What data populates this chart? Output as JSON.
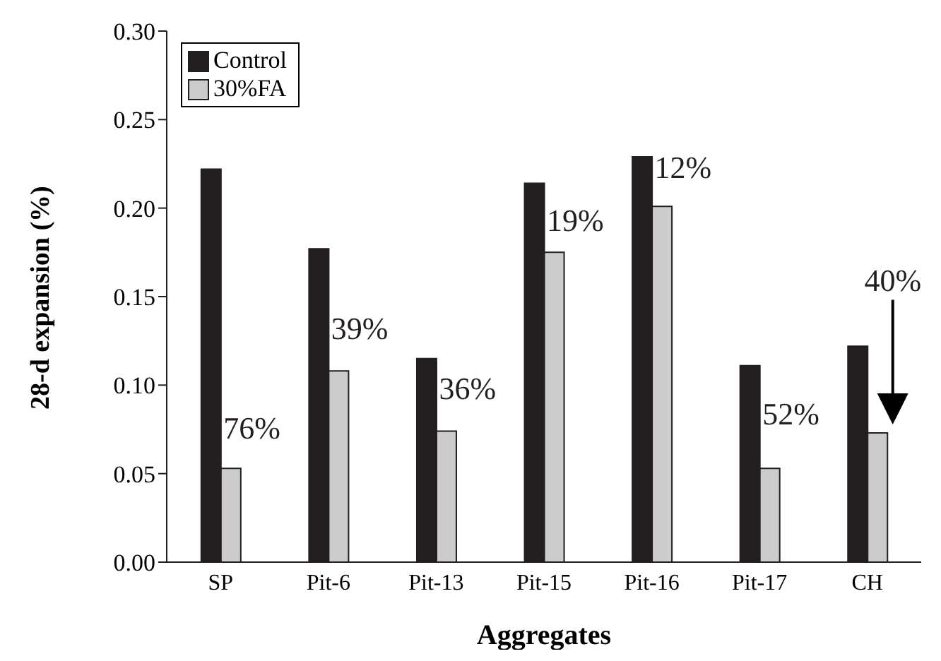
{
  "chart_data": {
    "type": "bar",
    "xlabel": "Aggregates",
    "ylabel": "28-d expansion (%)",
    "categories": [
      "SP",
      "Pit-6",
      "Pit-13",
      "Pit-15",
      "Pit-16",
      "Pit-17",
      "CH"
    ],
    "series": [
      {
        "name": "Control",
        "color": "#231f20",
        "values": [
          0.222,
          0.177,
          0.115,
          0.214,
          0.229,
          0.111,
          0.122
        ]
      },
      {
        "name": "30%FA",
        "color": "#cccccc",
        "values": [
          0.053,
          0.108,
          0.074,
          0.175,
          0.201,
          0.053,
          0.073
        ]
      }
    ],
    "ylim": [
      0,
      0.3
    ],
    "yticks": [
      {
        "value": 0,
        "label": "0.00"
      },
      {
        "value": 0.05,
        "label": "0.05"
      },
      {
        "value": 0.1,
        "label": "0.10"
      },
      {
        "value": 0.15,
        "label": "0.15"
      },
      {
        "value": 0.2,
        "label": "0.20"
      },
      {
        "value": 0.25,
        "label": "0.25"
      },
      {
        "value": 0.3,
        "label": "0.30"
      }
    ],
    "legend": "top left",
    "grid": false,
    "annotations": [
      {
        "text": "76%",
        "x": "SP",
        "y": 0.074
      },
      {
        "text": "39%",
        "x": "Pit-6",
        "y": 0.13
      },
      {
        "text": "36%",
        "x": "Pit-13",
        "y": 0.096
      },
      {
        "text": "19%",
        "x": "Pit-15",
        "y": 0.191
      },
      {
        "text": "12%",
        "x": "Pit-16",
        "y": 0.221
      },
      {
        "text": "52%",
        "x": "Pit-17",
        "y": 0.082
      },
      "40%"
    ]
  }
}
